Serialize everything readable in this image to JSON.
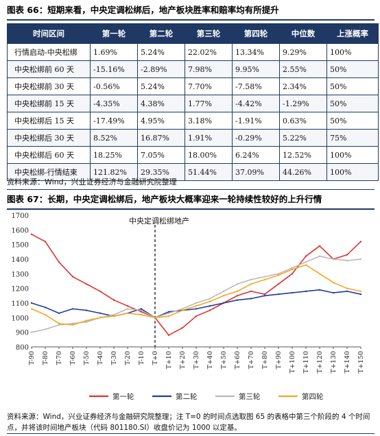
{
  "table_title": "图表 66：短期来看，中央定调松绑后，地产板块胜率和赔率均有所提升",
  "table": {
    "headers": [
      "时间区间",
      "第一轮",
      "第二轮",
      "第三轮",
      "第四轮",
      "中位数",
      "上涨概率"
    ],
    "rows": [
      [
        "行情启动-中央松绑",
        "1.69%",
        "5.24%",
        "22.02%",
        "13.34%",
        "9.29%",
        "100%"
      ],
      [
        "中央松绑前 60 天",
        "-15.16%",
        "-2.89%",
        "7.98%",
        "9.95%",
        "2.55%",
        "50%"
      ],
      [
        "中央松绑前 30 天",
        "-0.56%",
        "5.24%",
        "7.70%",
        "-7.58%",
        "2.34%",
        "50%"
      ],
      [
        "中央松绑前 15 天",
        "-4.35%",
        "4.38%",
        "1.77%",
        "-4.42%",
        "-1.29%",
        "50%"
      ],
      [
        "中央松绑后 15 天",
        "-17.49%",
        "4.95%",
        "3.18%",
        "-1.91%",
        "0.63%",
        "50%"
      ],
      [
        "中央松绑后 30 天",
        "8.52%",
        "16.87%",
        "1.91%",
        "-0.29%",
        "5.22%",
        "75%"
      ],
      [
        "中央松绑后 60 天",
        "18.25%",
        "7.05%",
        "18.00%",
        "6.24%",
        "12.52%",
        "100%"
      ],
      [
        "中央松绑-行情结束",
        "121.82%",
        "29.35%",
        "51.44%",
        "37.09%",
        "44.26%",
        "100%"
      ]
    ]
  },
  "table_source": "资料来源：Wind，兴业证券经济与金融研究院整理",
  "chart_title": "图表 67：长期，中央定调松绑后，地产板块大概率迎来一轮持续性较好的上升行情",
  "chart_source": "资料来源：Wind，兴业证券经济与金融研究院整理；注 T=0 的时间点选取图 65 的表格中第三个阶段的 4 个时间点，并将该时间地产板块（代码 801180.SI）收盘价记为 1000 以定基。",
  "colors": {
    "header_bg": "#1f3864",
    "series1": "#e03030",
    "series2": "#1f3c9a",
    "series3": "#b8b8b8",
    "series4": "#f5a623"
  },
  "chart_data": {
    "type": "line",
    "annotation": "中央定调松绑地产",
    "x": [
      "T-90",
      "T-80",
      "T-70",
      "T-60",
      "T-50",
      "T-40",
      "T-30",
      "T-20",
      "T-10",
      "T+0",
      "T+10",
      "T+20",
      "T+30",
      "T+40",
      "T+50",
      "T+60",
      "T+70",
      "T+80",
      "T+90",
      "T+100",
      "T+110",
      "T+120",
      "T+130",
      "T+140",
      "T+150"
    ],
    "ylim": [
      800,
      1700
    ],
    "yticks": [
      800,
      900,
      1000,
      1100,
      1200,
      1300,
      1400,
      1500,
      1600,
      1700
    ],
    "series": [
      {
        "name": "第一轮",
        "color": "#e03030",
        "values": [
          1570,
          1520,
          1380,
          1280,
          1230,
          1180,
          1120,
          1080,
          1040,
          1000,
          880,
          930,
          1010,
          1050,
          1100,
          1150,
          1180,
          1160,
          1230,
          1300,
          1420,
          1490,
          1400,
          1430,
          1520
        ]
      },
      {
        "name": "第二轮",
        "color": "#1f3c9a",
        "values": [
          1100,
          1070,
          1030,
          1060,
          1050,
          1030,
          1010,
          1030,
          1060,
          1000,
          1040,
          1050,
          1060,
          1080,
          1100,
          1120,
          1130,
          1150,
          1160,
          1170,
          1180,
          1190,
          1170,
          1180,
          1160
        ]
      },
      {
        "name": "第三轮",
        "color": "#b8b8b8",
        "values": [
          900,
          920,
          950,
          960,
          970,
          1000,
          1020,
          1060,
          1050,
          1000,
          1030,
          1060,
          1100,
          1130,
          1180,
          1230,
          1260,
          1280,
          1300,
          1340,
          1380,
          1420,
          1400,
          1390,
          1400
        ]
      },
      {
        "name": "第四轮",
        "color": "#f5a623",
        "values": [
          1060,
          1020,
          960,
          950,
          980,
          1000,
          1010,
          1030,
          1020,
          1000,
          1010,
          1050,
          1080,
          1110,
          1150,
          1180,
          1230,
          1260,
          1290,
          1330,
          1360,
          1300,
          1240,
          1200,
          1180
        ]
      }
    ]
  }
}
